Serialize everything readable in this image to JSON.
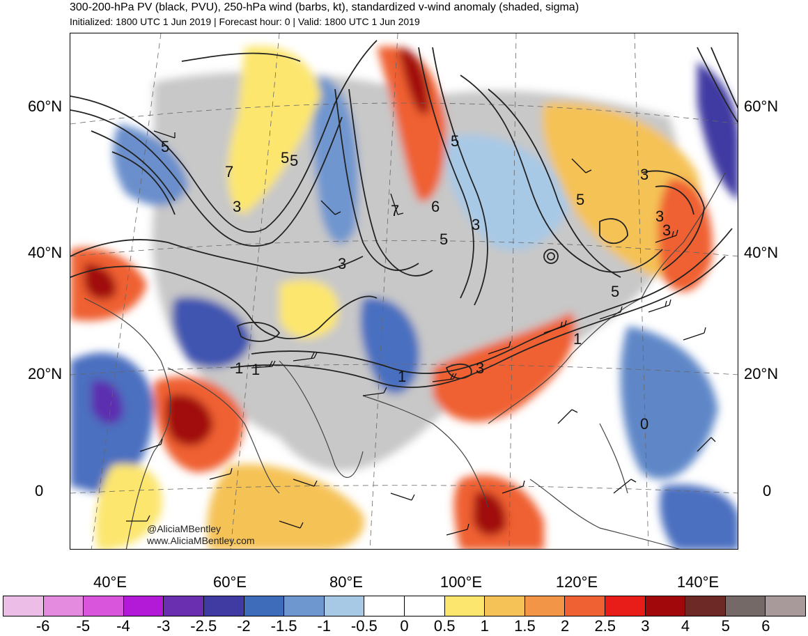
{
  "title": "300-200-hPa PV (black, PVU), 250-hPa wind (barbs, kt), standardized v-wind anomaly (shaded, sigma)",
  "subtitle": "Initialized: 1800 UTC 1 Jun 2019 | Forecast hour: 0 | Valid: 1800 UTC 1 Jun 2019",
  "map": {
    "lat_labels": [
      "60°N",
      "40°N",
      "20°N",
      "0"
    ],
    "lon_labels": [
      "40°E",
      "60°E",
      "80°E",
      "100°E",
      "120°E",
      "140°E"
    ],
    "contour_labels": [
      "5",
      "5",
      "3",
      "5",
      "7",
      "5",
      "3",
      "6",
      "7",
      "5",
      "3",
      "3",
      "5",
      "3",
      "3",
      "5",
      "1",
      "1",
      "3",
      "1",
      "1",
      "0"
    ],
    "credit": [
      "@AliciaMBentley",
      "www.AliciaMBentley.com"
    ]
  },
  "colorbar": {
    "colors": [
      "#ecbde6",
      "#e48be0",
      "#d955dc",
      "#b21ad7",
      "#6a2fb0",
      "#3f3ba2",
      "#3f6cba",
      "#6e97cf",
      "#a8c9e6",
      "#ffffff",
      "#ffffff",
      "#fce66e",
      "#f5c257",
      "#f39547",
      "#ef6032",
      "#e81c19",
      "#a1080b",
      "#6c2926",
      "#756967",
      "#a89a9a"
    ],
    "tick_labels": [
      "-6",
      "-5",
      "-4",
      "-3",
      "-2.5",
      "-2",
      "-1.5",
      "-1",
      "-0.5",
      "0",
      "0.5",
      "1",
      "1.5",
      "2",
      "2.5",
      "3",
      "4",
      "5",
      "6"
    ]
  }
}
